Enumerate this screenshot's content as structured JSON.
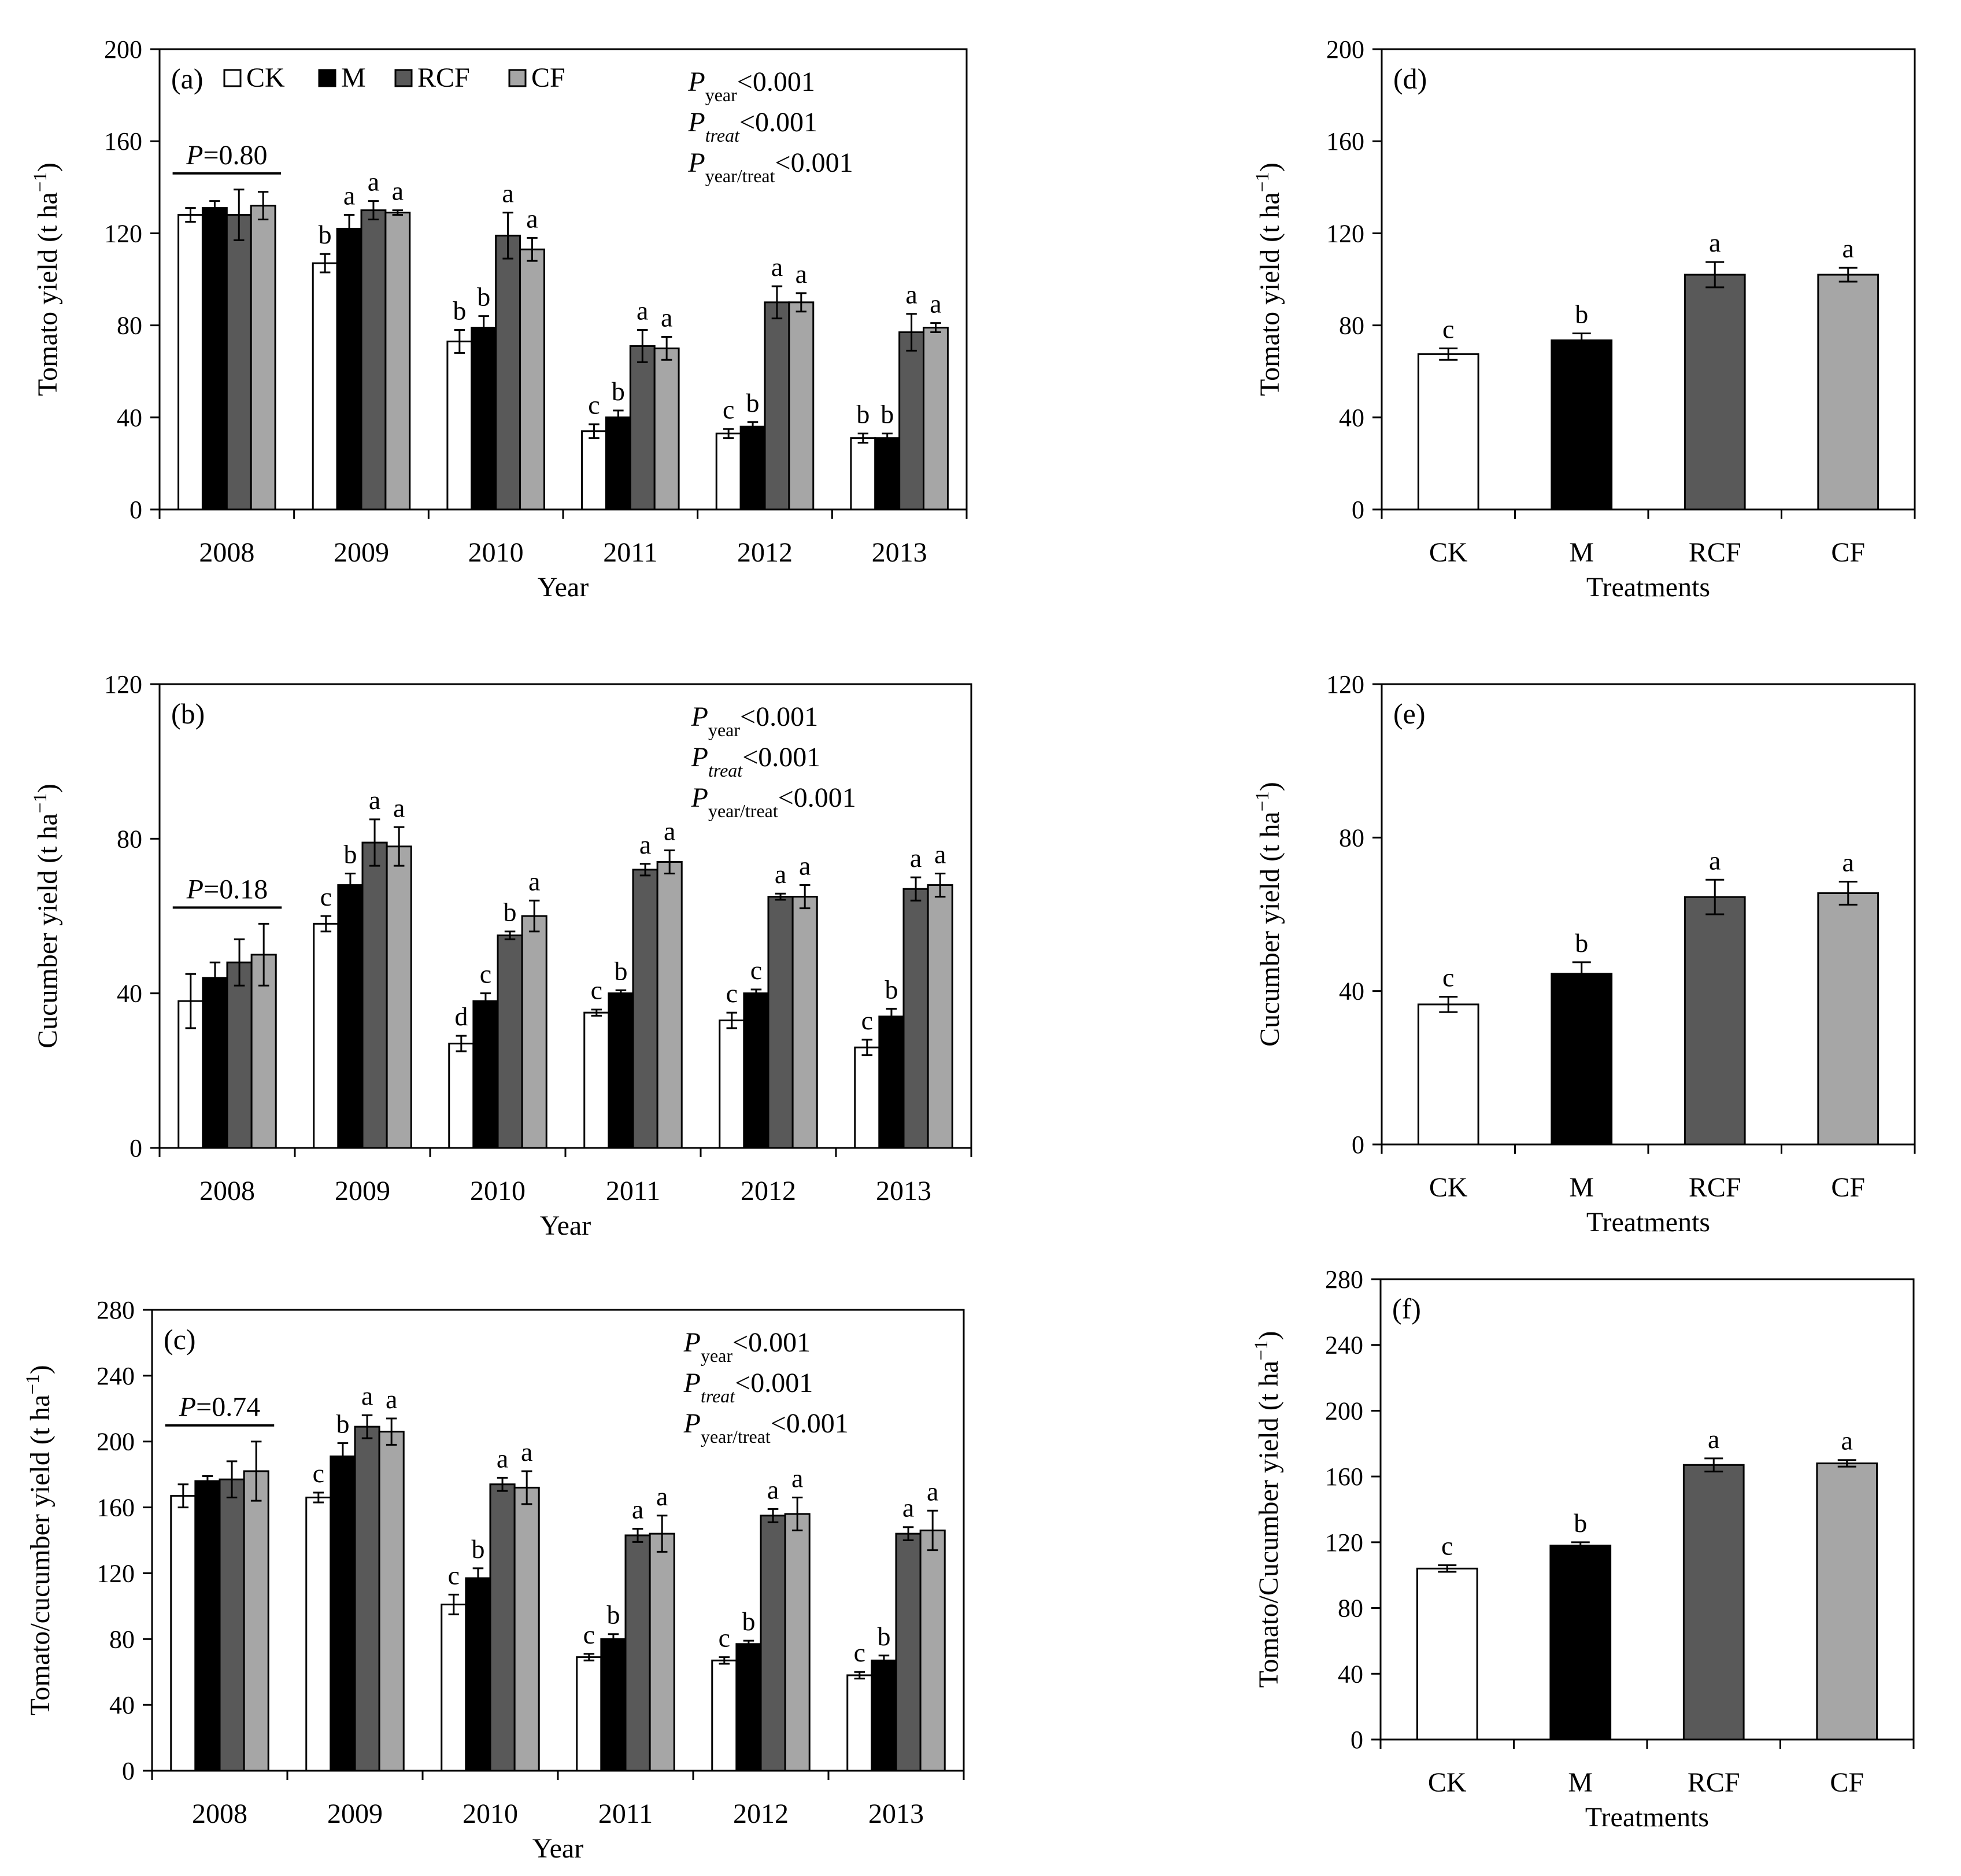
{
  "figure": {
    "treatments": [
      "CK",
      "M",
      "RCF",
      "CF"
    ],
    "legend": [
      "CK",
      "M",
      "RCF",
      "CF"
    ],
    "colors": {
      "CK": "#ffffff",
      "M": "#000000",
      "RCF": "#595959",
      "CF": "#a6a6a6",
      "axis": "#000000"
    }
  },
  "chart_data": [
    {
      "id": "a",
      "type": "bar",
      "panel_label": "(a)",
      "categories": [
        "2008",
        "2009",
        "2010",
        "2011",
        "2012",
        "2013"
      ],
      "series": [
        {
          "name": "CK",
          "values": [
            128,
            107,
            73,
            34,
            33,
            31
          ],
          "errors": [
            3,
            4,
            5,
            3,
            2,
            2
          ],
          "letters": [
            "",
            "b",
            "b",
            "c",
            "c",
            "b"
          ]
        },
        {
          "name": "M",
          "values": [
            131,
            122,
            79,
            40,
            36,
            31
          ],
          "errors": [
            3,
            6,
            5,
            3,
            2,
            2
          ],
          "letters": [
            "",
            "a",
            "b",
            "b",
            "b",
            "b"
          ]
        },
        {
          "name": "RCF",
          "values": [
            128,
            130,
            119,
            71,
            90,
            77
          ],
          "errors": [
            11,
            4,
            10,
            7,
            7,
            8
          ],
          "letters": [
            "",
            "a",
            "a",
            "a",
            "a",
            "a"
          ]
        },
        {
          "name": "CF",
          "values": [
            132,
            129,
            113,
            70,
            90,
            79
          ],
          "errors": [
            6,
            1,
            5,
            5,
            4,
            2
          ],
          "letters": [
            "",
            "a",
            "a",
            "a",
            "a",
            "a"
          ]
        }
      ],
      "xlabel": "Year",
      "ylabel": "Tomato yield (t ha⁻¹)",
      "ylim": [
        0,
        200
      ],
      "yticks": [
        "0",
        "40",
        "80",
        "120",
        "160",
        "200"
      ],
      "p_overall": "0.80",
      "stats": [
        "<0.001",
        "<0.001",
        "<0.001"
      ]
    },
    {
      "id": "b",
      "type": "bar",
      "panel_label": "(b)",
      "categories": [
        "2008",
        "2009",
        "2010",
        "2011",
        "2012",
        "2013"
      ],
      "series": [
        {
          "name": "CK",
          "values": [
            38,
            58,
            27,
            35,
            33,
            26
          ],
          "errors": [
            7,
            2,
            2,
            0.8,
            2,
            2
          ],
          "letters": [
            "",
            "c",
            "d",
            "c",
            "c",
            "c"
          ]
        },
        {
          "name": "M",
          "values": [
            44,
            68,
            38,
            40,
            40,
            34
          ],
          "errors": [
            4,
            3,
            2,
            0.8,
            1,
            2
          ],
          "letters": [
            "",
            "b",
            "c",
            "b",
            "c",
            "b"
          ]
        },
        {
          "name": "RCF",
          "values": [
            48,
            79,
            55,
            72,
            65,
            67
          ],
          "errors": [
            6,
            6,
            1,
            1.5,
            0.8,
            3
          ],
          "letters": [
            "",
            "a",
            "b",
            "a",
            "a",
            "a"
          ]
        },
        {
          "name": "CF",
          "values": [
            50,
            78,
            60,
            74,
            65,
            68
          ],
          "errors": [
            8,
            5,
            4,
            3,
            3,
            3
          ],
          "letters": [
            "",
            "a",
            "a",
            "a",
            "a",
            "a"
          ]
        }
      ],
      "xlabel": "Year",
      "ylabel": "Cucumber yield (t ha⁻¹)",
      "ylim": [
        0,
        120
      ],
      "yticks": [
        "0",
        "40",
        "80",
        "120"
      ],
      "p_overall": "0.18",
      "stats": [
        "<0.001",
        "<0.001",
        "<0.001"
      ]
    },
    {
      "id": "c",
      "type": "bar",
      "panel_label": "(c)",
      "categories": [
        "2008",
        "2009",
        "2010",
        "2011",
        "2012",
        "2013"
      ],
      "series": [
        {
          "name": "CK",
          "values": [
            167,
            166,
            101,
            69,
            67,
            58
          ],
          "errors": [
            7,
            3,
            6,
            2,
            2,
            2
          ],
          "letters": [
            "",
            "c",
            "c",
            "c",
            "c",
            "c"
          ]
        },
        {
          "name": "M",
          "values": [
            176,
            191,
            117,
            80,
            77,
            67
          ],
          "errors": [
            3,
            8,
            6,
            3,
            2,
            3
          ],
          "letters": [
            "",
            "b",
            "b",
            "b",
            "b",
            "b"
          ]
        },
        {
          "name": "RCF",
          "values": [
            177,
            209,
            174,
            143,
            155,
            144
          ],
          "errors": [
            11,
            7,
            4,
            4,
            4,
            4
          ],
          "letters": [
            "",
            "a",
            "a",
            "a",
            "a",
            "a"
          ]
        },
        {
          "name": "CF",
          "values": [
            182,
            206,
            172,
            144,
            156,
            146
          ],
          "errors": [
            18,
            8,
            10,
            11,
            10,
            12
          ],
          "letters": [
            "",
            "a",
            "a",
            "a",
            "a",
            "a"
          ]
        }
      ],
      "xlabel": "Year",
      "ylabel": "Tomato/cucumber yield (t ha⁻¹)",
      "ylim": [
        0,
        280
      ],
      "yticks": [
        "0",
        "40",
        "80",
        "120",
        "160",
        "200",
        "240",
        "280"
      ],
      "p_overall": "0.74",
      "stats": [
        "<0.001",
        "<0.001",
        "<0.001"
      ]
    },
    {
      "id": "d",
      "type": "bar",
      "panel_label": "(d)",
      "categories": [
        "CK",
        "M",
        "RCF",
        "CF"
      ],
      "values": [
        67.5,
        73.5,
        102,
        102
      ],
      "errors": [
        2.5,
        3,
        5.5,
        3
      ],
      "letters": [
        "c",
        "b",
        "a",
        "a"
      ],
      "xlabel": "Treatments",
      "ylabel": "Tomato yield (t ha⁻¹)",
      "ylim": [
        0,
        200
      ],
      "yticks": [
        "0",
        "40",
        "80",
        "120",
        "160",
        "200"
      ]
    },
    {
      "id": "e",
      "type": "bar",
      "panel_label": "(e)",
      "categories": [
        "CK",
        "M",
        "RCF",
        "CF"
      ],
      "values": [
        36.5,
        44.5,
        64.5,
        65.5
      ],
      "errors": [
        2,
        3,
        4.5,
        3
      ],
      "letters": [
        "c",
        "b",
        "a",
        "a"
      ],
      "xlabel": "Treatments",
      "ylabel": "Cucumber yield (t ha⁻¹)",
      "ylim": [
        0,
        120
      ],
      "yticks": [
        "0",
        "40",
        "80",
        "120"
      ]
    },
    {
      "id": "f",
      "type": "bar",
      "panel_label": "(f)",
      "categories": [
        "CK",
        "M",
        "RCF",
        "CF"
      ],
      "values": [
        104,
        118,
        167,
        168
      ],
      "errors": [
        2,
        2,
        4,
        2
      ],
      "letters": [
        "c",
        "b",
        "a",
        "a"
      ],
      "xlabel": "Treatments",
      "ylabel": "Tomato/Cucumber yield (t ha⁻¹)",
      "ylim": [
        0,
        280
      ],
      "yticks": [
        "0",
        "40",
        "80",
        "120",
        "160",
        "200",
        "240",
        "280"
      ]
    }
  ]
}
